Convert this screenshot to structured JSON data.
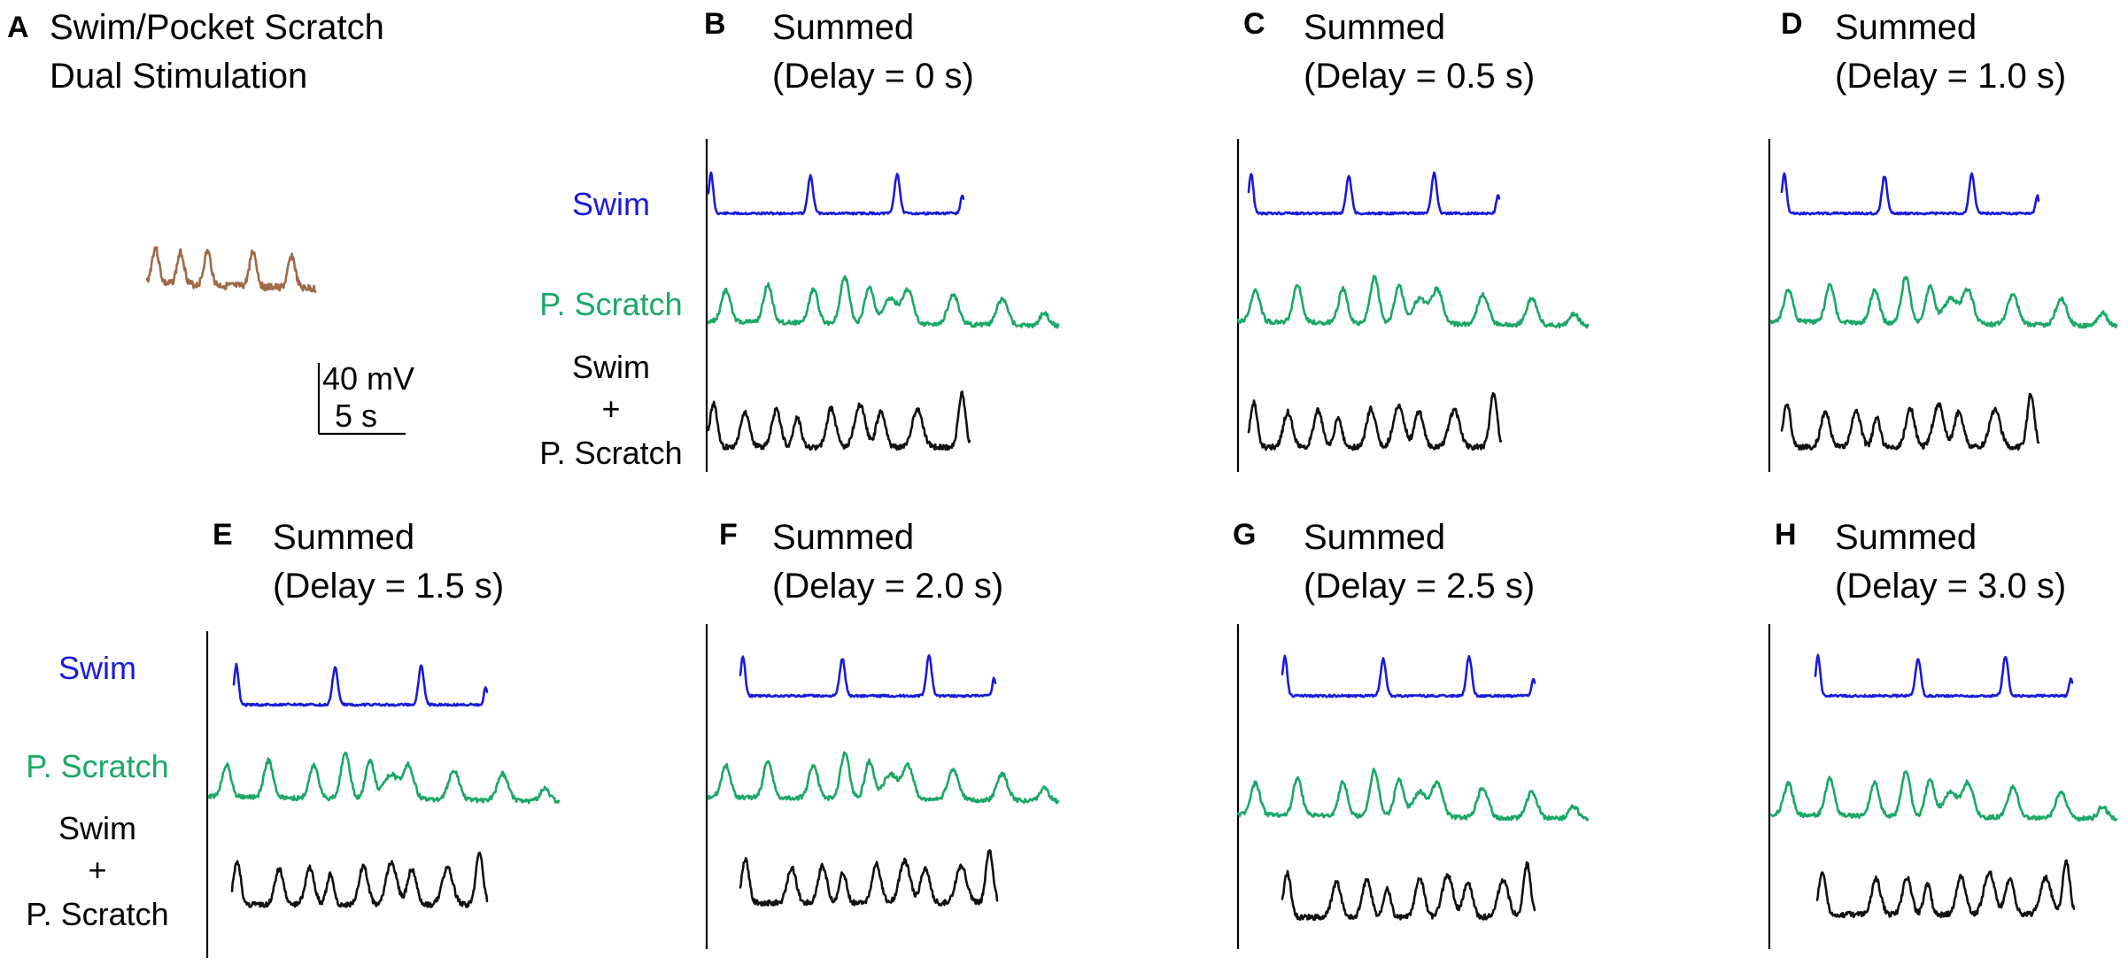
{
  "colors": {
    "swim": "#1a1adb",
    "scratch": "#1aa866",
    "summed": "#111111",
    "dual": "#a06a4a"
  },
  "panel_a": {
    "letter": "A",
    "title_line1": "Swim/Pocket Scratch",
    "title_line2": "Dual Stimulation",
    "scale_voltage": "40 mV",
    "scale_time": "5 s"
  },
  "trace_labels": {
    "swim": "Swim",
    "scratch": "P. Scratch",
    "sum_line1": "Swim",
    "sum_line2": "+",
    "sum_line3": "P. Scratch"
  },
  "panels": [
    {
      "letter": "B",
      "title_line1": "Summed",
      "title_line2": "(Delay = 0 s)",
      "delay_s": 0
    },
    {
      "letter": "C",
      "title_line1": "Summed",
      "title_line2": "(Delay = 0.5 s)",
      "delay_s": 0.5
    },
    {
      "letter": "D",
      "title_line1": "Summed",
      "title_line2": "(Delay = 1.0 s)",
      "delay_s": 1.0
    },
    {
      "letter": "E",
      "title_line1": "Summed",
      "title_line2": "(Delay = 1.5 s)",
      "delay_s": 1.5
    },
    {
      "letter": "F",
      "title_line1": "Summed",
      "title_line2": "(Delay = 2.0 s)",
      "delay_s": 2.0
    },
    {
      "letter": "G",
      "title_line1": "Summed",
      "title_line2": "(Delay = 2.5 s)",
      "delay_s": 2.5
    },
    {
      "letter": "H",
      "title_line1": "Summed",
      "title_line2": "(Delay = 3.0 s)",
      "delay_s": 3.0
    }
  ]
}
